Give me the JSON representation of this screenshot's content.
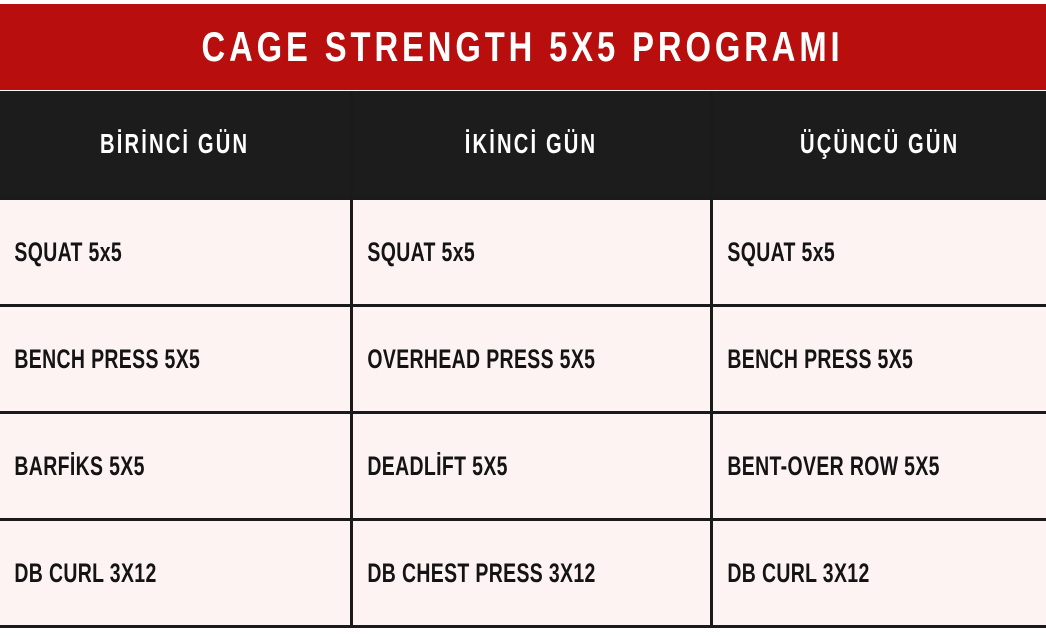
{
  "title": "CAGE STRENGTH 5X5 PROGRAMI",
  "colors": {
    "title_bg": "#b90e0e",
    "header_bg": "#1c1c1c",
    "cell_bg": "#fdf3f2",
    "text_dark": "#141414",
    "text_light": "#ffffff"
  },
  "table": {
    "headers": [
      "BİRİNCİ GÜN",
      "İKİNCİ GÜN",
      "ÜÇÜNCÜ GÜN"
    ],
    "rows": [
      [
        "SQUAT 5x5",
        "SQUAT 5x5",
        "SQUAT 5x5"
      ],
      [
        "BENCH PRESS 5X5",
        "OVERHEAD PRESS 5X5",
        "BENCH PRESS 5X5"
      ],
      [
        "BARFİKS 5X5",
        "DEADLİFT 5X5",
        "BENT-OVER ROW 5X5"
      ],
      [
        "DB CURL 3X12",
        "DB CHEST PRESS 3X12",
        "DB CURL 3X12"
      ]
    ]
  }
}
